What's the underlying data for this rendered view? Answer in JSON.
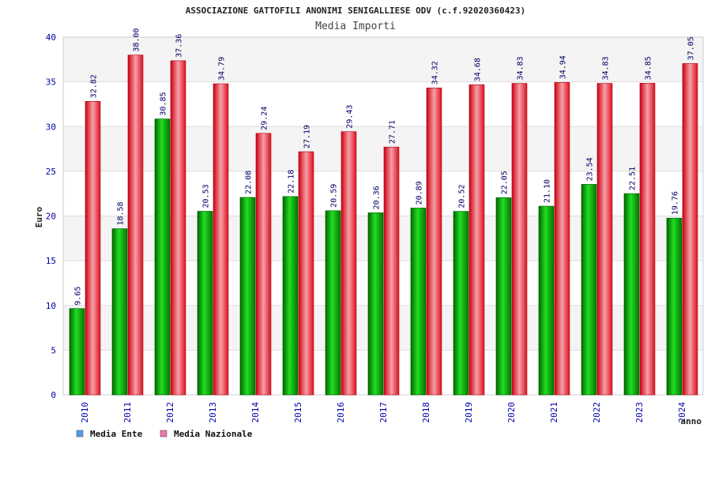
{
  "chart_data": {
    "type": "bar",
    "title": "ASSOCIAZIONE GATTOFILI ANONIMI SENIGALLIESE ODV (c.f.92020360423)",
    "subtitle": "Media Importi",
    "xlabel": "anno",
    "ylabel": "Euro",
    "ylim": [
      0,
      40
    ],
    "yticks": [
      "0",
      "5",
      "10",
      "15",
      "20",
      "25",
      "30",
      "35",
      "40"
    ],
    "categories": [
      "2010",
      "2011",
      "2012",
      "2013",
      "2014",
      "2015",
      "2016",
      "2017",
      "2018",
      "2019",
      "2020",
      "2021",
      "2022",
      "2023",
      "2024"
    ],
    "series": [
      {
        "name": "Media Ente",
        "color": "#00aa00",
        "values": [
          9.65,
          18.58,
          30.85,
          20.53,
          22.08,
          22.18,
          20.59,
          20.36,
          20.89,
          20.52,
          22.05,
          21.1,
          23.54,
          22.51,
          19.76
        ],
        "labels": [
          "9.65",
          "18.58",
          "30.85",
          "20.53",
          "22.08",
          "22.18",
          "20.59",
          "20.36",
          "20.89",
          "20.52",
          "22.05",
          "21.10",
          "23.54",
          "22.51",
          "19.76"
        ]
      },
      {
        "name": "Media Nazionale",
        "color": "#e8202a",
        "values": [
          32.82,
          38.0,
          37.36,
          34.79,
          29.24,
          27.19,
          29.43,
          27.71,
          34.32,
          34.68,
          34.83,
          34.94,
          34.83,
          34.85,
          37.05
        ],
        "labels": [
          "32.82",
          "38.00",
          "37.36",
          "34.79",
          "29.24",
          "27.19",
          "29.43",
          "27.71",
          "34.32",
          "34.68",
          "34.83",
          "34.94",
          "34.83",
          "34.85",
          "37.05"
        ]
      }
    ],
    "legend": [
      {
        "label": "Media Ente",
        "color": "#5599ee"
      },
      {
        "label": "Media Nazionale",
        "color": "#ee77aa"
      }
    ],
    "grid": true
  }
}
